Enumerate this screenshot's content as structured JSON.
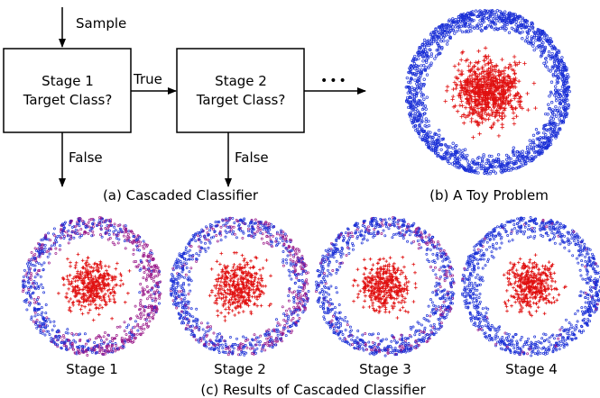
{
  "flowchart": {
    "input_label": "Sample",
    "stage1": {
      "line1": "Stage 1",
      "line2": "Target Class?"
    },
    "stage2": {
      "line1": "Stage 2",
      "line2": "Target Class?"
    },
    "true_label": "True",
    "false_label_1": "False",
    "false_label_2": "False",
    "continuation": "•••",
    "caption": "(a) Cascaded Classifier"
  },
  "toy_problem": {
    "caption": "(b) A Toy Problem"
  },
  "results": {
    "stages": [
      {
        "label": "Stage 1",
        "misclassified_fraction": 0.55
      },
      {
        "label": "Stage 2",
        "misclassified_fraction": 0.35
      },
      {
        "label": "Stage 3",
        "misclassified_fraction": 0.18
      },
      {
        "label": "Stage 4",
        "misclassified_fraction": 0.04
      }
    ],
    "caption": "(c) Results of Cascaded Classifier"
  },
  "colors": {
    "inner_class": "#e01010",
    "outer_class": "#1a2fd6",
    "misclassified": "#9a1a8a",
    "stroke": "#000000"
  }
}
